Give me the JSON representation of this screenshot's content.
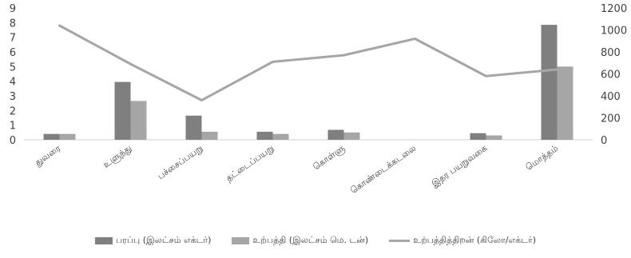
{
  "chart_data": {
    "type": "bar",
    "categories": [
      "துவரை",
      "உளுந்து",
      "பச்சைப்பயறு",
      "தட்டைப்பயறு",
      "கொள்ளு",
      "கொண்டைக்கடலை",
      "இதர பயறுவகை",
      "மொத்தம்"
    ],
    "series": [
      {
        "name": "பரப்பு (இலட்சம் எக்டர்)",
        "type": "bar",
        "axis": "left",
        "color": "#7f7f7f",
        "values": [
          0.4,
          3.95,
          1.65,
          0.55,
          0.68,
          0.0,
          0.45,
          7.85
        ]
      },
      {
        "name": "உற்பத்தி (இலட்சம் மெ. டன்)",
        "type": "bar",
        "axis": "left",
        "color": "#a6a6a6",
        "values": [
          0.4,
          2.65,
          0.55,
          0.4,
          0.5,
          0.0,
          0.3,
          5.0
        ]
      },
      {
        "name": "உற்பத்தித்திறன் (கிலோ/எக்டர்)",
        "type": "line",
        "axis": "right",
        "color": "#a6a6a6",
        "values": [
          1040,
          690,
          360,
          710,
          770,
          920,
          580,
          640
        ]
      }
    ],
    "left_axis": {
      "min": 0,
      "max": 9,
      "ticks": [
        "0",
        "1",
        "2",
        "3",
        "4",
        "5",
        "6",
        "7",
        "8",
        "9"
      ]
    },
    "right_axis": {
      "min": 0,
      "max": 1200,
      "ticks": [
        "0",
        "200",
        "400",
        "600",
        "800",
        "1000",
        "1200"
      ]
    },
    "grid": false,
    "legend": "bottom"
  }
}
